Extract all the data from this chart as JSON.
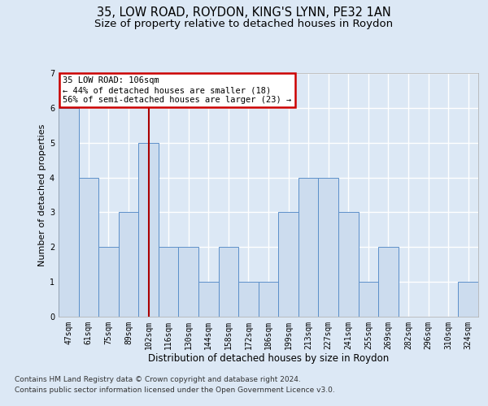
{
  "title_line1": "35, LOW ROAD, ROYDON, KING'S LYNN, PE32 1AN",
  "title_line2": "Size of property relative to detached houses in Roydon",
  "xlabel": "Distribution of detached houses by size in Roydon",
  "ylabel": "Number of detached properties",
  "categories": [
    "47sqm",
    "61sqm",
    "75sqm",
    "89sqm",
    "102sqm",
    "116sqm",
    "130sqm",
    "144sqm",
    "158sqm",
    "172sqm",
    "186sqm",
    "199sqm",
    "213sqm",
    "227sqm",
    "241sqm",
    "255sqm",
    "269sqm",
    "282sqm",
    "296sqm",
    "310sqm",
    "324sqm"
  ],
  "values": [
    6,
    4,
    2,
    3,
    5,
    2,
    2,
    1,
    2,
    1,
    1,
    3,
    4,
    4,
    3,
    1,
    2,
    0,
    0,
    0,
    1
  ],
  "bar_color": "#ccdcee",
  "bar_edge_color": "#5b8fc9",
  "red_line_index": 4,
  "annotation_line1": "35 LOW ROAD: 106sqm",
  "annotation_line2": "← 44% of detached houses are smaller (18)",
  "annotation_line3": "56% of semi-detached houses are larger (23) →",
  "annotation_box_color": "#ffffff",
  "annotation_box_edge": "#cc0000",
  "ylim_min": 0,
  "ylim_max": 7,
  "yticks": [
    0,
    1,
    2,
    3,
    4,
    5,
    6,
    7
  ],
  "footnote1": "Contains HM Land Registry data © Crown copyright and database right 2024.",
  "footnote2": "Contains public sector information licensed under the Open Government Licence v3.0.",
  "bg_color": "#dce8f5",
  "plot_bg_color": "#dce8f5",
  "grid_color": "#ffffff",
  "title_fontsize": 10.5,
  "subtitle_fontsize": 9.5,
  "tick_fontsize": 7,
  "ylabel_fontsize": 8,
  "xlabel_fontsize": 8.5,
  "annotation_fontsize": 7.5,
  "footnote_fontsize": 6.5
}
